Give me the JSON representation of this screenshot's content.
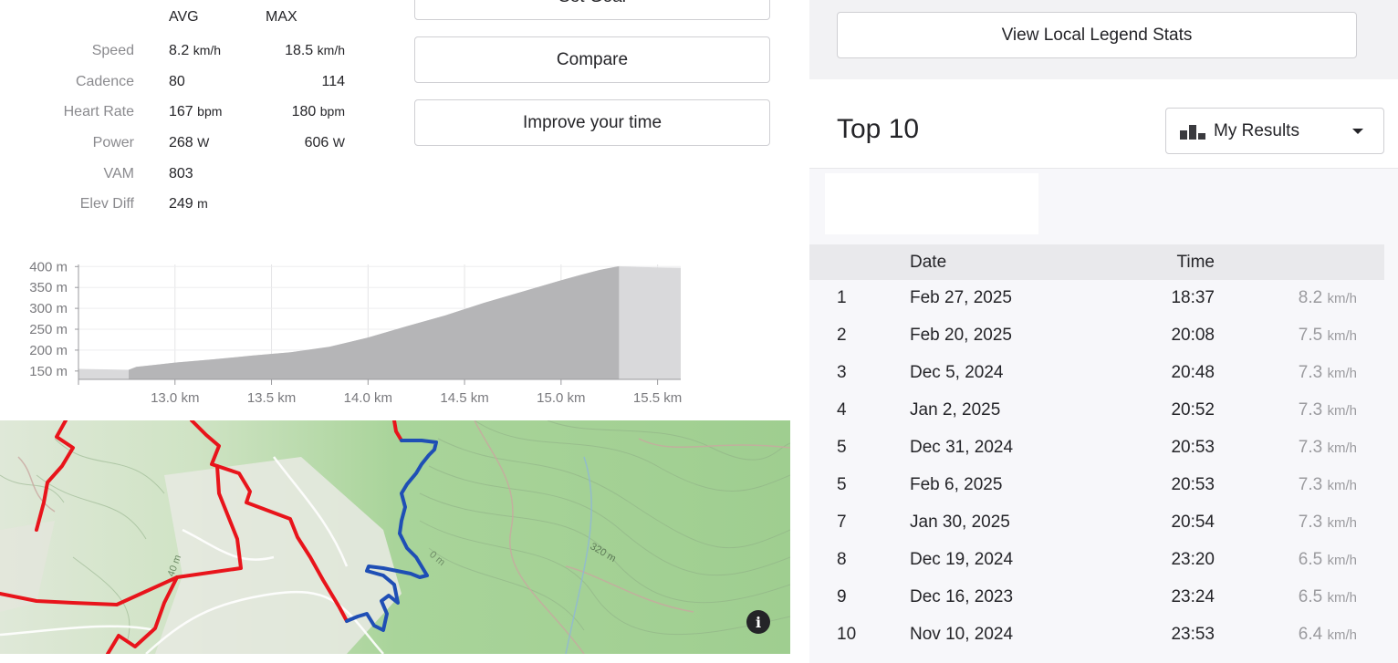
{
  "stats": {
    "headers": {
      "avg": "AVG",
      "max": "MAX"
    },
    "rows": [
      {
        "label": "Speed",
        "avg": "8.2",
        "avg_unit": "km/h",
        "max": "18.5",
        "max_unit": "km/h"
      },
      {
        "label": "Cadence",
        "avg": "80",
        "avg_unit": "",
        "max": "114",
        "max_unit": ""
      },
      {
        "label": "Heart Rate",
        "avg": "167",
        "avg_unit": "bpm",
        "max": "180",
        "max_unit": "bpm"
      },
      {
        "label": "Power",
        "avg": "268",
        "avg_unit": "W",
        "max": "606",
        "max_unit": "W"
      },
      {
        "label": "VAM",
        "avg": "803",
        "avg_unit": "",
        "max": "",
        "max_unit": ""
      },
      {
        "label": "Elev Diff",
        "avg": "249",
        "avg_unit": "m",
        "max": "",
        "max_unit": ""
      }
    ]
  },
  "buttons": {
    "set_goal": "Set Goal",
    "compare": "Compare",
    "improve": "Improve your time"
  },
  "chart_data": {
    "type": "area",
    "xlabel": "",
    "ylabel": "",
    "x_ticks": [
      "13.0 km",
      "13.5 km",
      "14.0 km",
      "14.5 km",
      "15.0 km",
      "15.5 km"
    ],
    "x_tick_values": [
      13.0,
      13.5,
      14.0,
      14.5,
      15.0,
      15.5
    ],
    "y_ticks": [
      "150 m",
      "200 m",
      "250 m",
      "300 m",
      "350 m",
      "400 m"
    ],
    "y_tick_values": [
      150,
      200,
      250,
      300,
      350,
      400
    ],
    "xlim": [
      12.5,
      15.62
    ],
    "ylim": [
      130,
      405
    ],
    "grid": true,
    "highlight_range": [
      12.76,
      15.3
    ],
    "x": [
      12.5,
      12.76,
      12.8,
      12.9,
      13.0,
      13.2,
      13.4,
      13.6,
      13.8,
      14.0,
      14.2,
      14.4,
      14.6,
      14.8,
      15.0,
      15.1,
      15.2,
      15.3,
      15.4,
      15.5,
      15.62
    ],
    "values": [
      155,
      153,
      160,
      165,
      170,
      178,
      187,
      195,
      208,
      230,
      257,
      283,
      313,
      340,
      367,
      380,
      392,
      401,
      399,
      398,
      397
    ]
  },
  "map": {
    "label_1": "40 m",
    "label_2": "320 m",
    "label_3": "0 m",
    "info_icon": "i"
  },
  "right_panel": {
    "legend_button": "View Local Legend Stats",
    "top10_title": "Top 10",
    "results_select": "My Results",
    "table_headers": {
      "date": "Date",
      "time": "Time"
    },
    "rows": [
      {
        "rank": "1",
        "date": "Feb 27, 2025",
        "time": "18:37",
        "speed": "8.2",
        "unit": "km/h"
      },
      {
        "rank": "2",
        "date": "Feb 20, 2025",
        "time": "20:08",
        "speed": "7.5",
        "unit": "km/h"
      },
      {
        "rank": "3",
        "date": "Dec 5, 2024",
        "time": "20:48",
        "speed": "7.3",
        "unit": "km/h"
      },
      {
        "rank": "4",
        "date": "Jan 2, 2025",
        "time": "20:52",
        "speed": "7.3",
        "unit": "km/h"
      },
      {
        "rank": "5",
        "date": "Dec 31, 2024",
        "time": "20:53",
        "speed": "7.3",
        "unit": "km/h"
      },
      {
        "rank": "5",
        "date": "Feb 6, 2025",
        "time": "20:53",
        "speed": "7.3",
        "unit": "km/h"
      },
      {
        "rank": "7",
        "date": "Jan 30, 2025",
        "time": "20:54",
        "speed": "7.3",
        "unit": "km/h"
      },
      {
        "rank": "8",
        "date": "Dec 19, 2024",
        "time": "23:20",
        "speed": "6.5",
        "unit": "km/h"
      },
      {
        "rank": "9",
        "date": "Dec 16, 2023",
        "time": "23:24",
        "speed": "6.5",
        "unit": "km/h"
      },
      {
        "rank": "10",
        "date": "Nov 10, 2024",
        "time": "23:53",
        "speed": "6.4",
        "unit": "km/h"
      }
    ]
  },
  "colors": {
    "route_red": "#e8141b",
    "route_blue": "#1f4fb5",
    "map_green": "#b7dba6",
    "chart_fill": "#b5b5b7",
    "chart_fill_light": "#d9d9db"
  }
}
